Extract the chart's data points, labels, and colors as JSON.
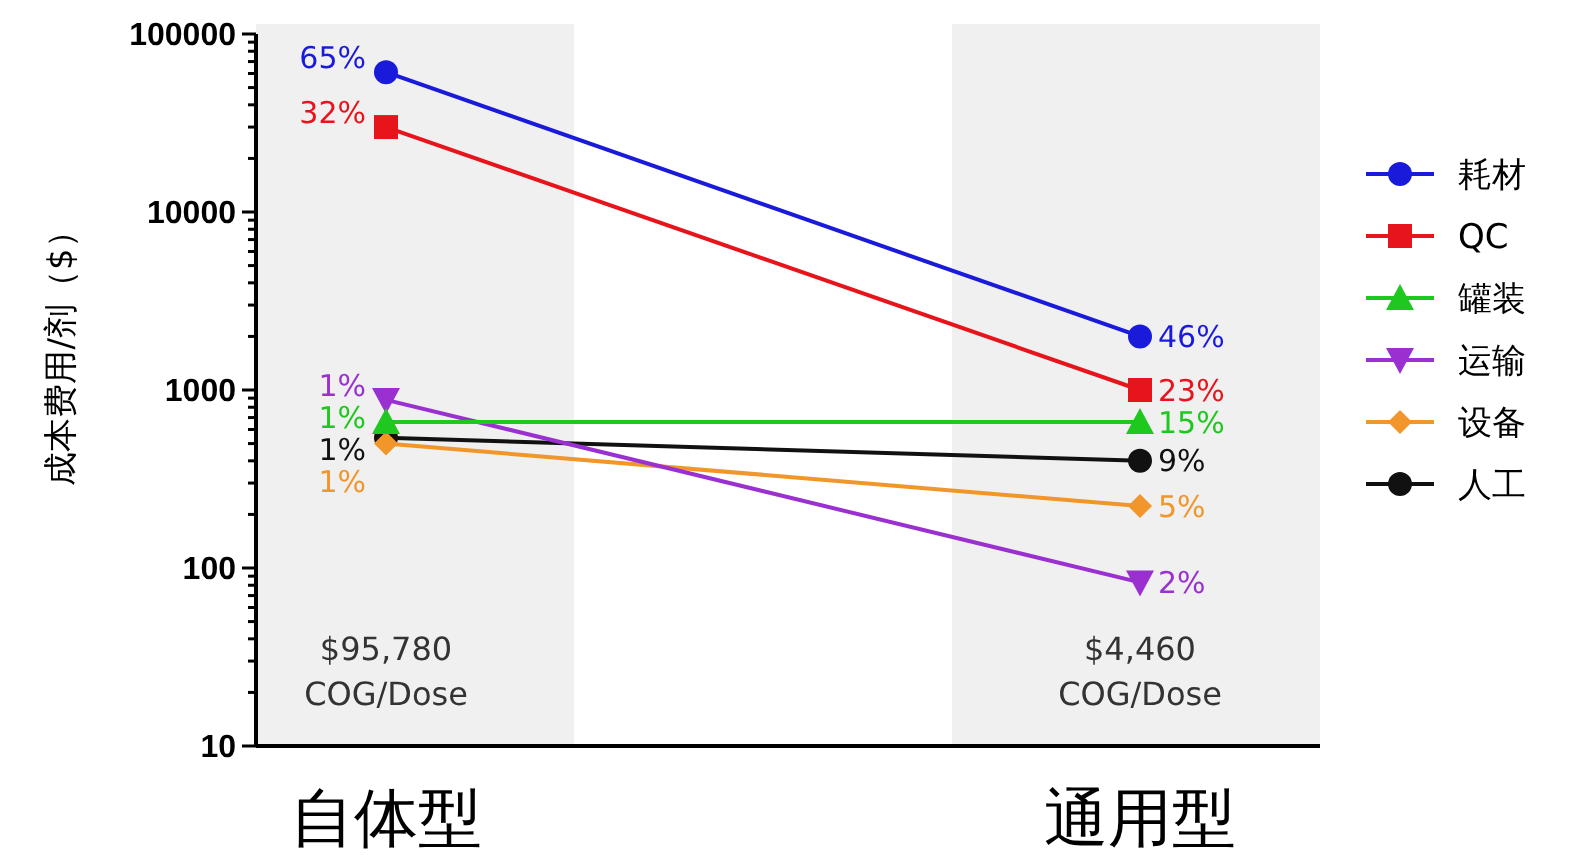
{
  "chart_data": {
    "type": "line",
    "ylabel": "成本费用/剂（$）",
    "categories": [
      "自体型",
      "通用型"
    ],
    "log": true,
    "ylim": [
      10,
      100000
    ],
    "yticks": [
      10,
      {
        "value": 20,
        "label": null
      },
      {
        "value": 30,
        "label": null
      },
      {
        "value": 40,
        "label": null
      },
      {
        "value": 50,
        "label": null
      },
      {
        "value": 60,
        "label": null
      },
      {
        "value": 70,
        "label": null
      },
      {
        "value": 80,
        "label": null
      },
      {
        "value": 90,
        "label": null
      },
      100,
      {
        "value": 200,
        "label": null
      },
      {
        "value": 300,
        "label": null
      },
      {
        "value": 400,
        "label": null
      },
      {
        "value": 500,
        "label": null
      },
      {
        "value": 600,
        "label": null
      },
      {
        "value": 700,
        "label": null
      },
      {
        "value": 800,
        "label": null
      },
      {
        "value": 900,
        "label": null
      },
      1000,
      {
        "value": 2000,
        "label": null
      },
      {
        "value": 3000,
        "label": null
      },
      {
        "value": 4000,
        "label": null
      },
      {
        "value": 5000,
        "label": null
      },
      {
        "value": 6000,
        "label": null
      },
      {
        "value": 7000,
        "label": null
      },
      {
        "value": 8000,
        "label": null
      },
      {
        "value": 9000,
        "label": null
      },
      10000,
      {
        "value": 20000,
        "label": null
      },
      {
        "value": 30000,
        "label": null
      },
      {
        "value": 40000,
        "label": null
      },
      {
        "value": 50000,
        "label": null
      },
      {
        "value": 60000,
        "label": null
      },
      {
        "value": 70000,
        "label": null
      },
      {
        "value": 80000,
        "label": null
      },
      {
        "value": 90000,
        "label": null
      },
      100000
    ],
    "legend": "right",
    "bands": [
      {
        "axis": "x",
        "from": "自体型",
        "to": "自体型",
        "color": "#f0f0f0"
      },
      {
        "axis": "x",
        "from": "通用型",
        "to": "通用型",
        "color": "#f0f0f0"
      }
    ],
    "series": [
      {
        "name": "耗材",
        "color": "#1a1adb",
        "marker": "circle",
        "values": [
          61000,
          2000
        ]
      },
      {
        "name": "QC",
        "color": "#e8141c",
        "marker": "square",
        "values": [
          30000,
          1000
        ]
      },
      {
        "name": "罐装",
        "color": "#1ec81e",
        "marker": "triangle",
        "values": [
          660,
          660
        ]
      },
      {
        "name": "运输",
        "color": "#9b30d0",
        "marker": "triangle-down",
        "values": [
          880,
          83
        ]
      },
      {
        "name": "设备",
        "color": "#f0962a",
        "marker": "diamond",
        "values": [
          500,
          223
        ]
      },
      {
        "name": "人工",
        "color": "#111111",
        "marker": "circle",
        "values": [
          540,
          400
        ]
      }
    ],
    "annotations": [
      {
        "text": "65%",
        "x": "自体型",
        "y": 61000
      },
      {
        "text": "46%",
        "x": "通用型",
        "y": 2000
      },
      {
        "text": "32%",
        "x": "自体型",
        "y": 30000
      },
      {
        "text": "23%",
        "x": "通用型",
        "y": 1000
      },
      {
        "text": "1%",
        "x": "自体型",
        "y": 880
      },
      {
        "text": "1%",
        "x": "自体型",
        "y": 660
      },
      {
        "text": "15%",
        "x": "通用型",
        "y": 660
      },
      {
        "text": "1%",
        "x": "自体型",
        "y": 540
      },
      {
        "text": "9%",
        "x": "通用型",
        "y": 400
      },
      {
        "text": "1%",
        "x": "自体型",
        "y": 500
      },
      {
        "text": "5%",
        "x": "通用型",
        "y": 223
      },
      {
        "text": "2%",
        "x": "通用型",
        "y": 83
      },
      "$95,780\nCOG/Dose",
      "$4,460\nCOG/Dose"
    ]
  }
}
